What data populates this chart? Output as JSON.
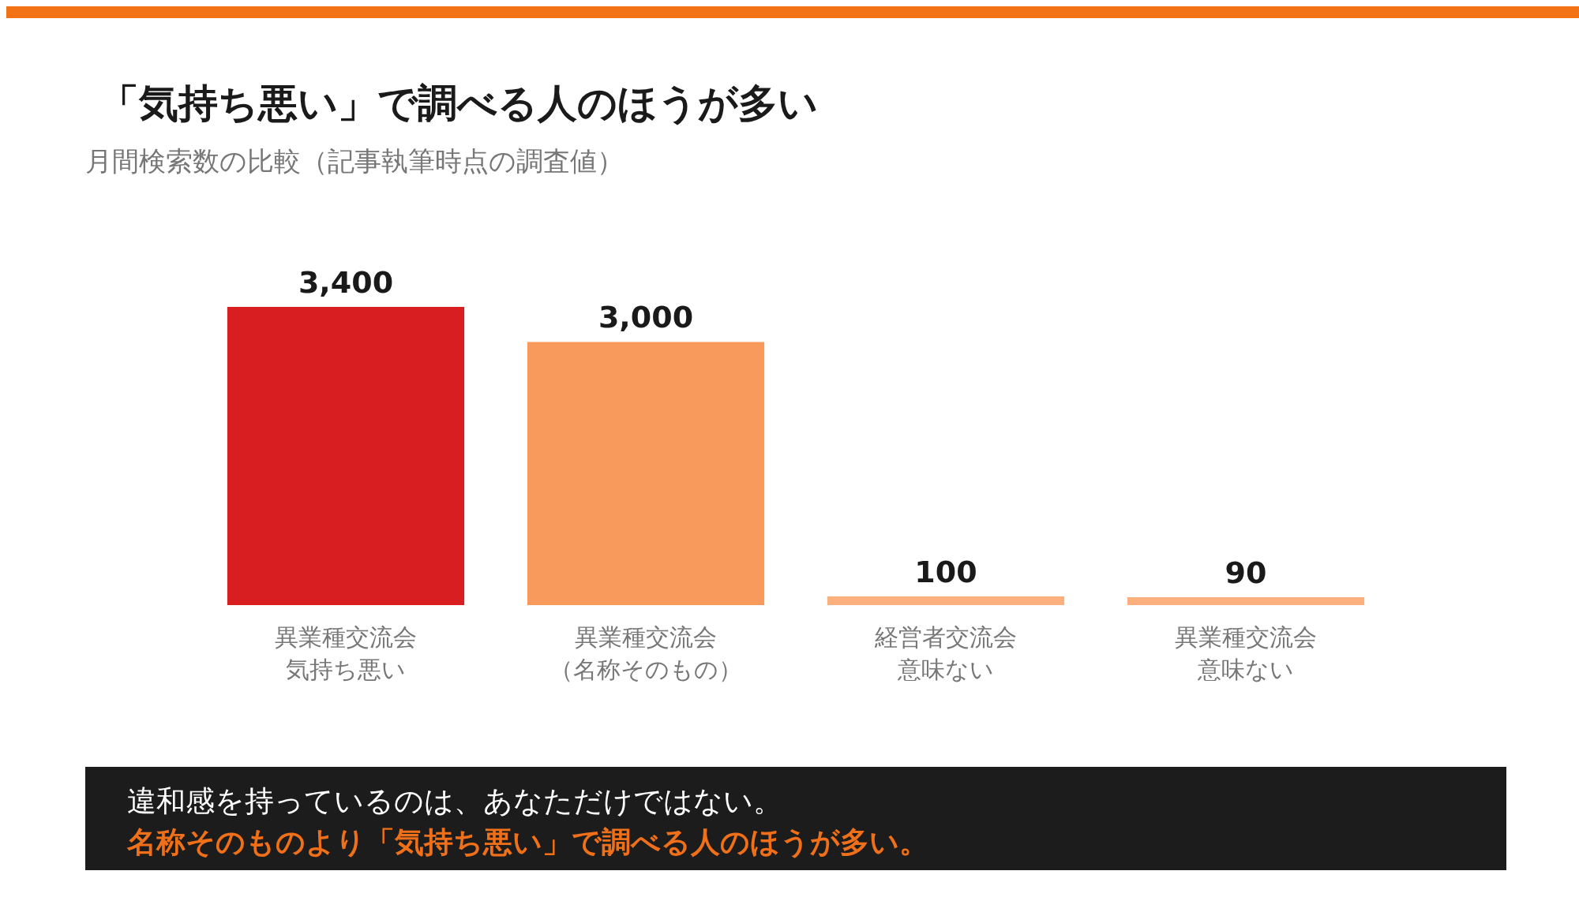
{
  "chart_data": {
    "type": "bar",
    "title": "「気持ち悪い」で調べる人のほうが多い",
    "subtitle": "月間検索数の比較（記事執筆時点の調査値）",
    "categories": [
      "異業種交流会気持ち悪い",
      "異業種交流会（名称そのもの）",
      "経営者交流会意味ない",
      "異業種交流会意味ない"
    ],
    "values": [
      3400,
      3000,
      100,
      90
    ],
    "colors": [
      "#d91e21",
      "#f79a5b",
      "#fbb07e",
      "#fbb07e"
    ],
    "value_labels": [
      "3,400",
      "3,000",
      "100",
      "90"
    ],
    "annotations": [
      "違和感を持っているのは、あなただけではない。",
      "名称そのものより「気持ち悪い」で調べる人のほうが多い。"
    ]
  }
}
